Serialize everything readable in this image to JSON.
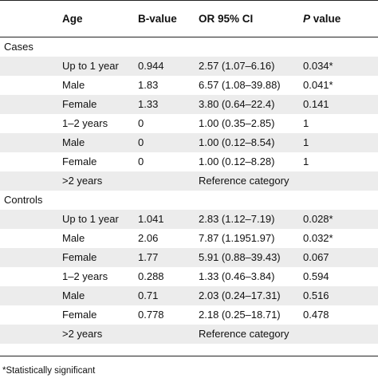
{
  "headers": {
    "age": "Age",
    "bvalue": "B-value",
    "or": "OR 95% CI",
    "p_italic": "P",
    "p_rest": " value"
  },
  "sections": [
    {
      "label": "Cases",
      "rows": [
        {
          "age": "Up to 1 year",
          "b": "0.944",
          "or": "2.57 (1.07–6.16)",
          "p": "0.034*"
        },
        {
          "age": "Male",
          "b": "1.83",
          "or": "6.57 (1.08–39.88)",
          "p": "0.041*"
        },
        {
          "age": "Female",
          "b": "1.33",
          "or": "3.80 (0.64–22.4)",
          "p": "0.141"
        },
        {
          "age": "1–2 years",
          "b": "0",
          "or": "1.00 (0.35–2.85)",
          "p": "1"
        },
        {
          "age": "Male",
          "b": "0",
          "or": "1.00 (0.12–8.54)",
          "p": "1"
        },
        {
          "age": "Female",
          "b": "0",
          "or": "1.00 (0.12–8.28)",
          "p": "1"
        },
        {
          "age": ">2 years",
          "b": "",
          "or": "Reference category",
          "p": ""
        }
      ]
    },
    {
      "label": "Controls",
      "rows": [
        {
          "age": "Up to 1 year",
          "b": "1.041",
          "or": "2.83 (1.12–7.19)",
          "p": "0.028*"
        },
        {
          "age": "Male",
          "b": "2.06",
          "or": "7.87 (1.1951.97)",
          "p": "0.032*"
        },
        {
          "age": "Female",
          "b": "1.77",
          "or": "5.91 (0.88–39.43)",
          "p": "0.067"
        },
        {
          "age": "1–2 years",
          "b": "0.288",
          "or": "1.33 (0.46–3.84)",
          "p": "0.594"
        },
        {
          "age": "Male",
          "b": "0.71",
          "or": "2.03 (0.24–17.31)",
          "p": "0.516"
        },
        {
          "age": "Female",
          "b": "0.778",
          "or": "2.18 (0.25–18.71)",
          "p": "0.478"
        },
        {
          "age": ">2 years",
          "b": "",
          "or": "Reference category",
          "p": ""
        }
      ]
    }
  ],
  "footnote": "*Statistically significant"
}
